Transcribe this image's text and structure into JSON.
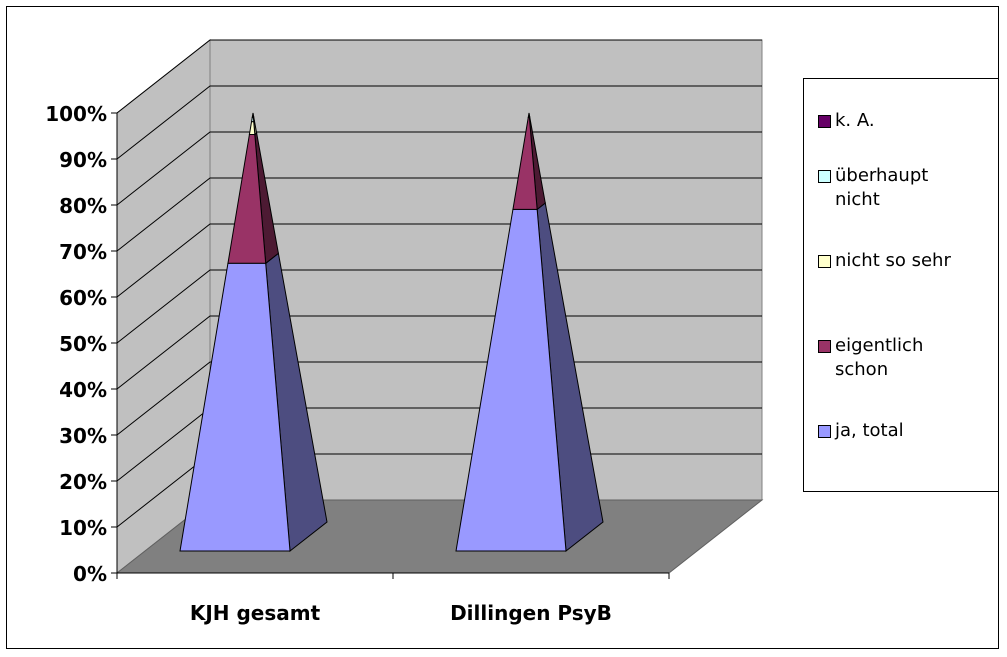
{
  "chart_data": {
    "type": "bar",
    "subtype": "3d-stacked-percent-pyramid",
    "categories": [
      "KJH gesamt",
      "Dillingen PsyB"
    ],
    "series": [
      {
        "name": "ja, total",
        "values": [
          67,
          78
        ],
        "color": "#9999ff"
      },
      {
        "name": "eigentlich schon",
        "values": [
          30,
          21
        ],
        "color": "#993366"
      },
      {
        "name": "nicht so sehr",
        "values": [
          3,
          0
        ],
        "color": "#ffffcc"
      },
      {
        "name": "überhaupt nicht",
        "values": [
          1,
          0
        ],
        "color": "#ccffff"
      },
      {
        "name": "k. A.",
        "values": [
          1,
          1
        ],
        "color": "#660066"
      }
    ],
    "yticks": [
      "0%",
      "10%",
      "20%",
      "30%",
      "40%",
      "50%",
      "60%",
      "70%",
      "80%",
      "90%",
      "100%"
    ],
    "ylim": [
      0,
      100
    ],
    "grid": true,
    "legend_position": "right"
  }
}
